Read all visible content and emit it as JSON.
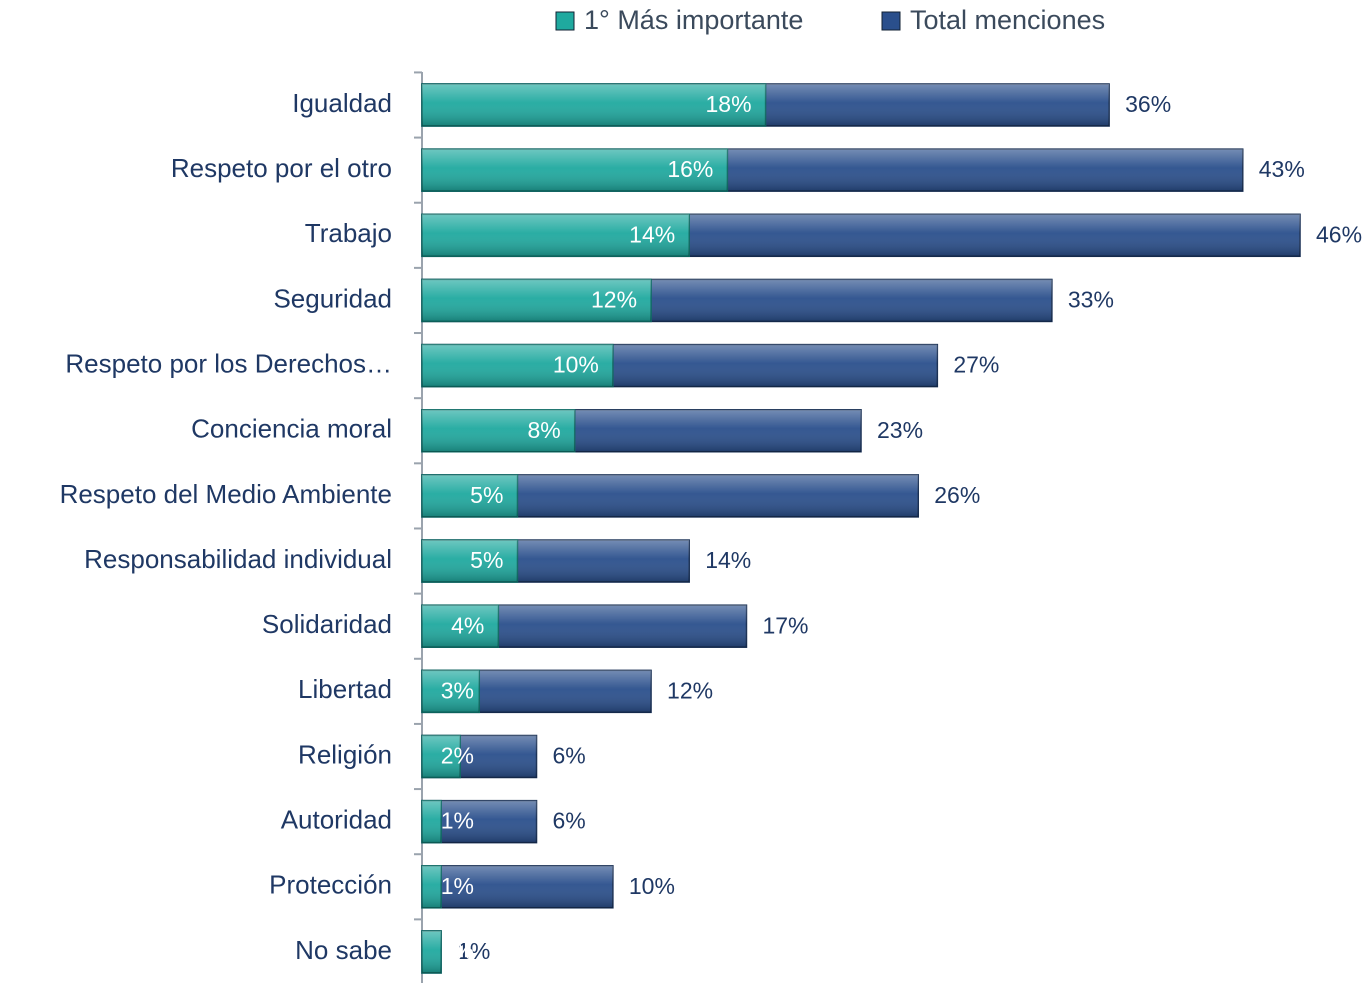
{
  "chart_data": {
    "type": "bar",
    "orientation": "horizontal",
    "overlap": true,
    "categories": [
      "Igualdad",
      "Respeto por el otro",
      "Trabajo",
      "Seguridad",
      "Respeto por los Derechos…",
      "Conciencia moral",
      "Respeto del Medio Ambiente",
      "Responsabilidad individual",
      "Solidaridad",
      "Libertad",
      "Religión",
      "Autoridad",
      "Protección",
      "No sabe"
    ],
    "series": [
      {
        "name": "Total menciones",
        "color": "#2a4f8c",
        "values": [
          36,
          43,
          46,
          33,
          27,
          23,
          26,
          14,
          17,
          12,
          6,
          6,
          10,
          1
        ],
        "value_labels": [
          "36%",
          "43%",
          "46%",
          "33%",
          "27%",
          "23%",
          "26%",
          "14%",
          "17%",
          "12%",
          "6%",
          "6%",
          "10%",
          "1%"
        ]
      },
      {
        "name": "1° Más importante",
        "color": "#1fa99f",
        "values": [
          18,
          16,
          14,
          12,
          10,
          8,
          5,
          5,
          4,
          3,
          2,
          1,
          1,
          1
        ],
        "value_labels": [
          "18%",
          "16%",
          "14%",
          "12%",
          "10%",
          "8%",
          "5%",
          "5%",
          "4%",
          "3%",
          "2%",
          "1%",
          "1%",
          "1%"
        ]
      }
    ],
    "xlim": [
      0,
      46
    ],
    "legend": "top"
  }
}
